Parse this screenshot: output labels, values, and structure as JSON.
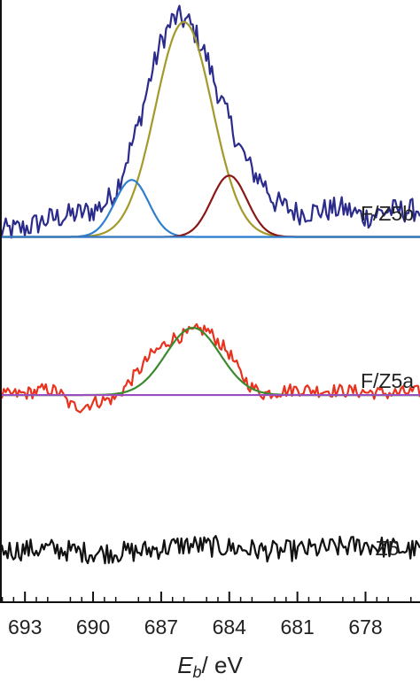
{
  "chart_data": {
    "type": "line",
    "xlabel": {
      "symbol": "E",
      "subscript": "b",
      "unit": "/ eV"
    },
    "x_reversed": true,
    "xlim": [
      694.1,
      675.6
    ],
    "x_ticks": [
      {
        "value": 693,
        "label": "693"
      },
      {
        "value": 690,
        "label": "690"
      },
      {
        "value": 687,
        "label": "687"
      },
      {
        "value": 684,
        "label": "684"
      },
      {
        "value": 681,
        "label": "681"
      },
      {
        "value": 678,
        "label": "678"
      }
    ],
    "grid": false,
    "legend": "none",
    "panels": [
      {
        "label": "F/Z5b",
        "baseline": 0,
        "ylim": [
          -0.18,
          10.2
        ],
        "series": [
          {
            "role": "measured",
            "color": "#2b2b8c",
            "x": [
              693.8,
              693,
              692,
              691,
              690,
              689.5,
              689,
              688.5,
              688,
              687.5,
              687,
              686.5,
              686.2,
              685.8,
              685.5,
              685,
              684.5,
              684,
              683.5,
              683,
              682.5,
              682,
              681,
              680,
              679,
              678,
              677,
              676,
              675.6
            ],
            "y": [
              0.3,
              0.4,
              0.8,
              1.0,
              1.2,
              1.5,
              2.1,
              3.6,
              5.1,
              7.2,
              8.9,
              9.9,
              10.0,
              9.8,
              9.3,
              8.2,
              6.6,
              5.3,
              4.0,
              3.0,
              2.5,
              1.6,
              1.1,
              1.2,
              1.3,
              0.9,
              1.2,
              1.2,
              1.3
            ],
            "noise": 0.55
          },
          {
            "role": "component-main",
            "color": "#a39a2a",
            "center": 686.0,
            "height": 9.8,
            "sigma": 1.25
          },
          {
            "role": "component-high",
            "color": "#2f7fd0",
            "center": 688.3,
            "height": 2.6,
            "sigma": 0.75
          },
          {
            "role": "component-low",
            "color": "#8c1616",
            "center": 684.0,
            "height": 2.8,
            "sigma": 0.78
          },
          {
            "role": "baseline",
            "color": "#2f7fd0",
            "constant": 0
          }
        ]
      },
      {
        "label": "F/Z5a",
        "baseline": 0,
        "ylim": [
          -1.3,
          5.4
        ],
        "series": [
          {
            "role": "measured",
            "color": "#e8321e",
            "x": [
              693.8,
              693,
              692,
              691.5,
              691,
              690.5,
              690,
              689,
              688.5,
              688,
              687.5,
              687,
              686.5,
              686,
              685.5,
              685,
              684.5,
              684,
              683.5,
              683,
              682.5,
              682,
              681,
              680,
              679,
              678,
              677,
              676,
              675.6
            ],
            "y": [
              0.0,
              0.1,
              0.4,
              0.2,
              -0.7,
              -0.8,
              -0.5,
              -0.2,
              0.7,
              1.6,
              2.6,
              3.2,
              3.8,
              4.0,
              4.3,
              4.4,
              3.6,
              2.8,
              1.4,
              0.5,
              0.1,
              0.2,
              0.4,
              0.3,
              0.3,
              0.2,
              0.1,
              0.2,
              0.2
            ],
            "noise": 0.45
          },
          {
            "role": "fit",
            "color": "#3a8a2e",
            "center": 685.6,
            "height": 4.5,
            "sigma": 1.2
          },
          {
            "role": "baseline",
            "color": "#9a4fc0",
            "constant": 0
          }
        ]
      },
      {
        "label": "Z5",
        "baseline": 0,
        "ylim": [
          -2.2,
          2.7
        ],
        "series": [
          {
            "role": "measured",
            "color": "#111111",
            "x": [
              693.8,
              692,
              690,
              688,
              686,
              684,
              682,
              680,
              678,
              676,
              675.6
            ],
            "y": [
              0.0,
              0.1,
              -0.2,
              -0.1,
              0.4,
              0.2,
              -0.1,
              0.1,
              0.4,
              0.0,
              0.1
            ],
            "noise": 0.8
          }
        ]
      }
    ]
  }
}
